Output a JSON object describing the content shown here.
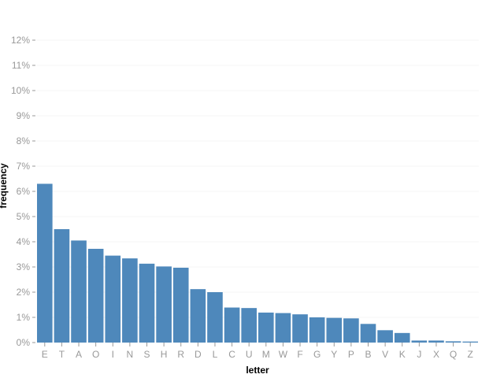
{
  "colors": {
    "bar": "#4e88bb",
    "tick_text": "#999999",
    "grid": "#f5f5f5",
    "axis_title": "#000000"
  },
  "chart_data": {
    "type": "bar",
    "title": "",
    "xlabel": "letter",
    "ylabel": "frequency",
    "categories": [
      "E",
      "T",
      "A",
      "O",
      "I",
      "N",
      "S",
      "H",
      "R",
      "D",
      "L",
      "C",
      "U",
      "M",
      "W",
      "F",
      "G",
      "Y",
      "P",
      "B",
      "V",
      "K",
      "J",
      "X",
      "Q",
      "Z"
    ],
    "values": [
      6.3,
      4.5,
      4.05,
      3.72,
      3.45,
      3.34,
      3.13,
      3.02,
      2.97,
      2.12,
      2.0,
      1.39,
      1.37,
      1.19,
      1.17,
      1.12,
      1.0,
      0.98,
      0.96,
      0.74,
      0.49,
      0.38,
      0.08,
      0.08,
      0.05,
      0.04
    ],
    "ylim": [
      0,
      12
    ],
    "y_ticks": [
      "0%",
      "1%",
      "2%",
      "3%",
      "4%",
      "5%",
      "6%",
      "7%",
      "8%",
      "9%",
      "10%",
      "11%",
      "12%"
    ],
    "grid": true,
    "legend": "none"
  }
}
